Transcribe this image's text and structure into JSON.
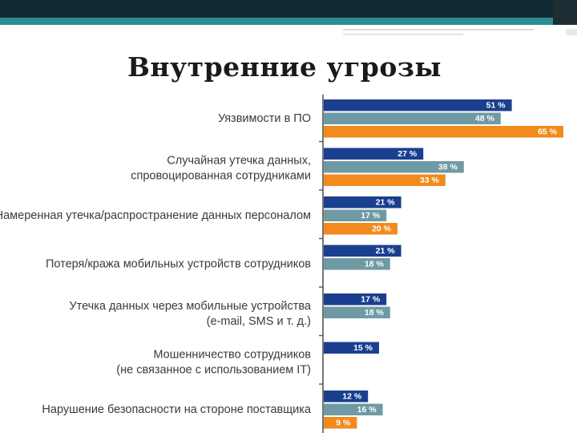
{
  "slide": {
    "title": "Внутренние угрозы"
  },
  "colors": {
    "series1": "#1a3f8f",
    "series2": "#6f9aa3",
    "series3": "#f28a1d",
    "axis": "#555555",
    "header_dark": "#0f2a33",
    "header_teal": "#2e8b8f"
  },
  "chart_data": {
    "type": "bar",
    "orientation": "horizontal",
    "title": "Внутренние угрозы",
    "xlim": [
      0,
      66
    ],
    "grid": false,
    "categories": [
      [
        "Уязвимости в ПО"
      ],
      [
        "Случайная утечка данных,",
        "спровоцированная сотрудниками"
      ],
      [
        "Намеренная утечка/распространение данных персоналом"
      ],
      [
        "Потеря/кража мобильных устройств сотрудников"
      ],
      [
        "Утечка данных через мобильные устройства",
        "(e-mail, SMS и т. д.)"
      ],
      [
        "Мошенничество сотрудников",
        "(не связанное с использованием IT)"
      ],
      [
        "Нарушение безопасности на стороне поставщика"
      ]
    ],
    "series": [
      {
        "name": "series1",
        "values": [
          51,
          27,
          21,
          21,
          17,
          15,
          12
        ],
        "labels": [
          "51 %",
          "27 %",
          "21 %",
          "21 %",
          "17 %",
          "15 %",
          "12 %"
        ]
      },
      {
        "name": "series2",
        "values": [
          48,
          38,
          17,
          18,
          18,
          null,
          16
        ],
        "labels": [
          "48 %",
          "38 %",
          "17 %",
          "18 %",
          "18 %",
          null,
          "16 %"
        ]
      },
      {
        "name": "series3",
        "values": [
          65,
          33,
          20,
          null,
          null,
          null,
          9
        ],
        "labels": [
          "65 %",
          "33 %",
          "20 %",
          null,
          null,
          null,
          "9 %"
        ]
      }
    ]
  }
}
